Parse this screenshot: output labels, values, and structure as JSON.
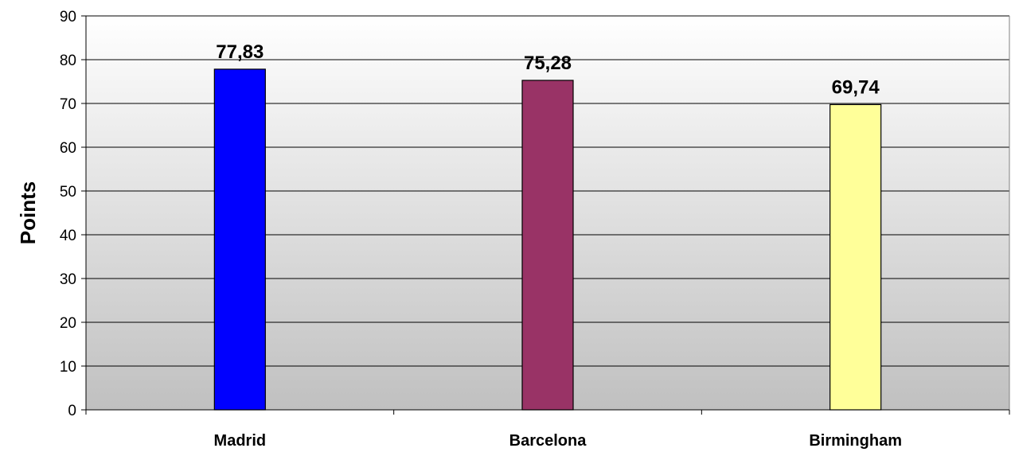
{
  "chart_data": {
    "type": "bar",
    "categories": [
      "Madrid",
      "Barcelona",
      "Birmingham"
    ],
    "values": [
      77.83,
      75.28,
      69.74
    ],
    "value_labels": [
      "77,83",
      "75,28",
      "69,74"
    ],
    "bar_colors": [
      "#0000ff",
      "#993366",
      "#ffff99"
    ],
    "title": "",
    "xlabel": "",
    "ylabel": "Points",
    "ylim": [
      0,
      90
    ],
    "yticks": [
      0,
      10,
      20,
      30,
      40,
      50,
      60,
      70,
      80,
      90
    ],
    "grid": true,
    "legend": "none"
  }
}
